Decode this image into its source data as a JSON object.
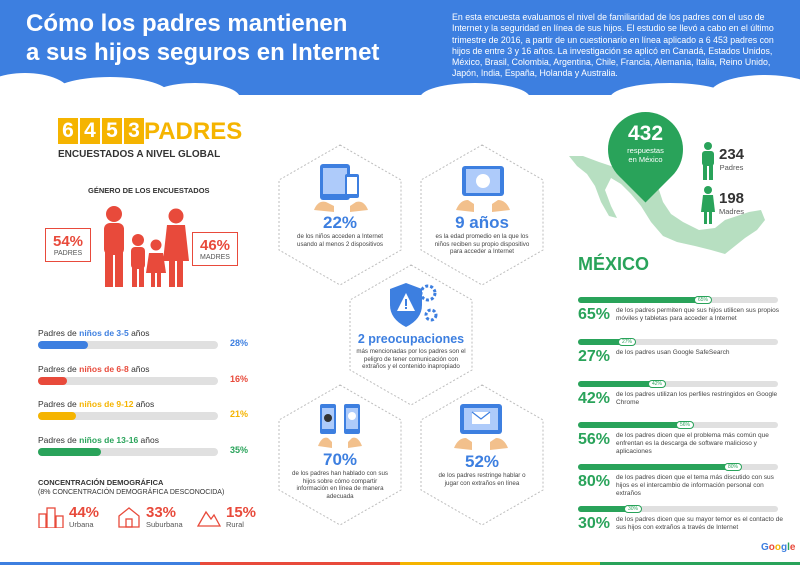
{
  "header": {
    "title_line1": "Cómo los padres mantienen",
    "title_line2": "a sus hijos seguros en Internet",
    "intro": "En esta encuesta evaluamos el nivel de familiaridad de los padres con el uso de Internet y la seguridad en línea de sus hijos. El estudio se llevó a cabo en el último trimestre de 2016, a partir de un cuestionario en línea aplicado a 6 453 padres con hijos de entre 3 y 16 años. La investigación se aplicó en Canadá, Estados Unidos, México, Brasil, Colombia, Argentina, Chile, Francia, Alemania, Italia, Reino Unido, Japón, India, España, Holanda y Australia."
  },
  "global": {
    "digits": [
      "6",
      "4",
      "5",
      "3"
    ],
    "word": "PADRES",
    "subtitle": "ENCUESTADOS A NIVEL GLOBAL"
  },
  "gender": {
    "title": "GÉNERO DE LOS ENCUESTADOS",
    "padres_pct": "54%",
    "padres_label": "PADRES",
    "madres_pct": "46%",
    "madres_label": "MADRES"
  },
  "ages": [
    {
      "prefix": "Padres de ",
      "range": "niños de 3-5",
      "suffix": " años",
      "value": "28%",
      "fraction": 0.28,
      "color": "#3d7fe0"
    },
    {
      "prefix": "Padres de ",
      "range": "niños de 6-8",
      "suffix": " años",
      "value": "16%",
      "fraction": 0.16,
      "color": "#e84a3b"
    },
    {
      "prefix": "Padres de ",
      "range": "niños de 9-12",
      "suffix": " años",
      "value": "21%",
      "fraction": 0.21,
      "color": "#f5b400"
    },
    {
      "prefix": "Padres de ",
      "range": "niños de 13-16",
      "suffix": " años",
      "value": "35%",
      "fraction": 0.35,
      "color": "#29a35a"
    }
  ],
  "demographics": {
    "title": "CONCENTRACIÓN DEMOGRÁFICA",
    "subtitle": "(8% CONCENTRACIÓN DEMOGRÁFICA DESCONOCIDA)",
    "items": [
      {
        "value": "44%",
        "label": "Urbana"
      },
      {
        "value": "33%",
        "label": "Suburbana"
      },
      {
        "value": "15%",
        "label": "Rural"
      }
    ]
  },
  "center": {
    "devices_pct": "22%",
    "devices_text": "de los niños acceden a Internet usando al menos 2 dispositivos",
    "age_value": "9 años",
    "age_text": "es la edad promedio en la que los niños reciben su propio dispositivo para acceder a Internet",
    "concerns_value": "2 preocupaciones",
    "concerns_text": "más mencionadas por los padres son el peligro de tener comunicación con extraños y el contenido inapropiado",
    "talked_pct": "70%",
    "talked_text": "de los padres han hablado con sus hijos sobre cómo compartir información en línea de manera adecuada",
    "restrict_pct": "52%",
    "restrict_text": "de los padres restringe hablar o jugar con extraños en línea"
  },
  "mexico": {
    "responses": "432",
    "responses_label": "respuestas en México",
    "padres_num": "234",
    "padres_label": "Padres",
    "madres_num": "198",
    "madres_label": "Madres",
    "country": "MÉXICO",
    "stats": [
      {
        "value": "65%",
        "tag": "65%",
        "fraction": 0.65,
        "text": "de los padres permiten que sus hijos utilicen sus propios móviles y tabletas para acceder a Internet"
      },
      {
        "value": "27%",
        "tag": "27%",
        "fraction": 0.27,
        "text": "de los padres usan Google SafeSearch"
      },
      {
        "value": "42%",
        "tag": "42%",
        "fraction": 0.42,
        "text": "de los padres utilizan los perfiles restringidos en Google Chrome"
      },
      {
        "value": "56%",
        "tag": "56%",
        "fraction": 0.56,
        "text": "de los padres dicen que el problema más común que enfrentan es la descarga de software malicioso y aplicaciones"
      },
      {
        "value": "80%",
        "tag": "80%",
        "fraction": 0.8,
        "text": "de los padres dicen que el tema más discutido con sus hijos es el intercambio de información personal con extraños"
      },
      {
        "value": "30%",
        "tag": "30%",
        "fraction": 0.3,
        "text": "de los padres dicen que su mayor temor es el contacto de sus hijos con extraños a través de Internet"
      }
    ]
  },
  "brand": "Google",
  "colors": {
    "blue": "#3d7fe0",
    "red": "#e84a3b",
    "yellow": "#f5b400",
    "green": "#29a35a"
  }
}
